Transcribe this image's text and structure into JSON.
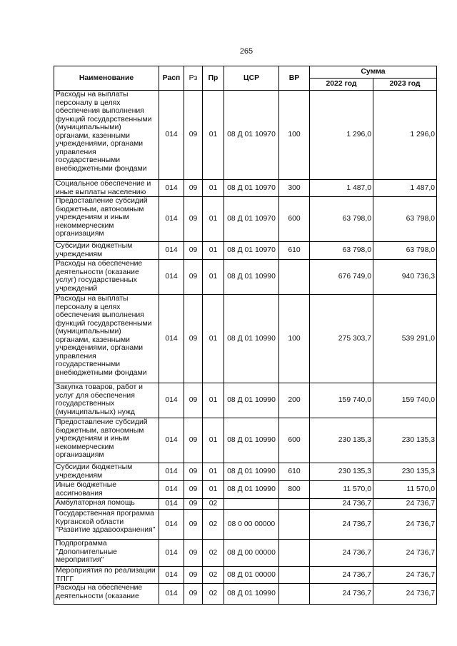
{
  "page_number": "265",
  "table": {
    "header": {
      "name": "Наименование",
      "rasp": "Расп",
      "rz": "Рз",
      "pr": "Пр",
      "csr": "ЦСР",
      "vr": "ВР",
      "sum": "Сумма",
      "y2022": "2022 год",
      "y2023": "2023 год"
    },
    "rows": [
      {
        "name": "Расходы на выплаты персоналу в целях обеспечения выполнения функций государственными (муниципальными) органами, казенными учреждениями, органами управления государственными внебюджетными фондами",
        "rasp": "014",
        "rz": "09",
        "pr": "01",
        "csr": "08 Д 01 10970",
        "vr": "100",
        "y2022": "1 296,0",
        "y2023": "1 296,0"
      },
      {
        "name": "Социальное обеспечение и иные выплаты населению",
        "rasp": "014",
        "rz": "09",
        "pr": "01",
        "csr": "08 Д 01 10970",
        "vr": "300",
        "y2022": "1 487,0",
        "y2023": "1 487,0"
      },
      {
        "name": "Предоставление субсидий бюджетным, автономным учреждениям и иным некоммерческим организациям",
        "rasp": "014",
        "rz": "09",
        "pr": "01",
        "csr": "08 Д 01 10970",
        "vr": "600",
        "y2022": "63 798,0",
        "y2023": "63 798,0"
      },
      {
        "name": "Субсидии бюджетным учреждениям",
        "rasp": "014",
        "rz": "09",
        "pr": "01",
        "csr": "08 Д 01 10970",
        "vr": "610",
        "y2022": "63 798,0",
        "y2023": "63 798,0"
      },
      {
        "name": "Расходы на обеспечение деятельности (оказание услуг) государственных учреждений",
        "rasp": "014",
        "rz": "09",
        "pr": "01",
        "csr": "08 Д 01 10990",
        "y2022": "676 749,0",
        "y2023": "940 736,3"
      },
      {
        "name": "Расходы на выплаты персоналу в целях обеспечения выполнения функций государственными (муниципальными) органами, казенными учреждениями, органами управления государственными внебюджетными фондами",
        "rasp": "014",
        "rz": "09",
        "pr": "01",
        "csr": "08 Д 01 10990",
        "vr": "100",
        "y2022": "275 303,7",
        "y2023": "539 291,0"
      },
      {
        "name": "Закупка товаров, работ и услуг для обеспечения государственных (муниципальных) нужд",
        "rasp": "014",
        "rz": "09",
        "pr": "01",
        "csr": "08 Д 01 10990",
        "vr": "200",
        "y2022": "159 740,0",
        "y2023": "159 740,0"
      },
      {
        "name": "Предоставление субсидий бюджетным, автономным учреждениям и иным некоммерческим организациям",
        "rasp": "014",
        "rz": "09",
        "pr": "01",
        "csr": "08 Д 01 10990",
        "vr": "600",
        "y2022": "230 135,3",
        "y2023": "230 135,3"
      },
      {
        "name": "Субсидии бюджетным учреждениям",
        "rasp": "014",
        "rz": "09",
        "pr": "01",
        "csr": "08 Д 01 10990",
        "vr": "610",
        "y2022": "230 135,3",
        "y2023": "230 135,3"
      },
      {
        "name": "Иные бюджетные ассигнования",
        "rasp": "014",
        "rz": "09",
        "pr": "01",
        "csr": "08 Д 01 10990",
        "vr": "800",
        "y2022": "11 570,0",
        "y2023": "11 570,0"
      },
      {
        "name": "Амбулаторная помощь",
        "rasp": "014",
        "rz": "09",
        "pr": "02",
        "y2022": "24 736,7",
        "y2023": "24 736,7"
      },
      {
        "name": "Государственная программа Курганской области \"Развитие здравоохранения\"",
        "rasp": "014",
        "rz": "09",
        "pr": "02",
        "csr": "08 0 00 00000",
        "y2022": "24 736,7",
        "y2023": "24 736,7"
      },
      {
        "name": "Подпрограмма \"Дополнительные мероприятия\"",
        "rasp": "014",
        "rz": "09",
        "pr": "02",
        "csr": "08 Д 00 00000",
        "y2022": "24 736,7",
        "y2023": "24 736,7"
      },
      {
        "name": "Мероприятия по реализации ТПГГ",
        "rasp": "014",
        "rz": "09",
        "pr": "02",
        "csr": "08 Д 01 00000",
        "y2022": "24 736,7",
        "y2023": "24 736,7"
      },
      {
        "name": "Расходы на обеспечение деятельности (оказание",
        "rasp": "014",
        "rz": "09",
        "pr": "02",
        "csr": "08 Д 01 10990",
        "y2022": "24 736,7",
        "y2023": "24 736,7"
      }
    ]
  }
}
